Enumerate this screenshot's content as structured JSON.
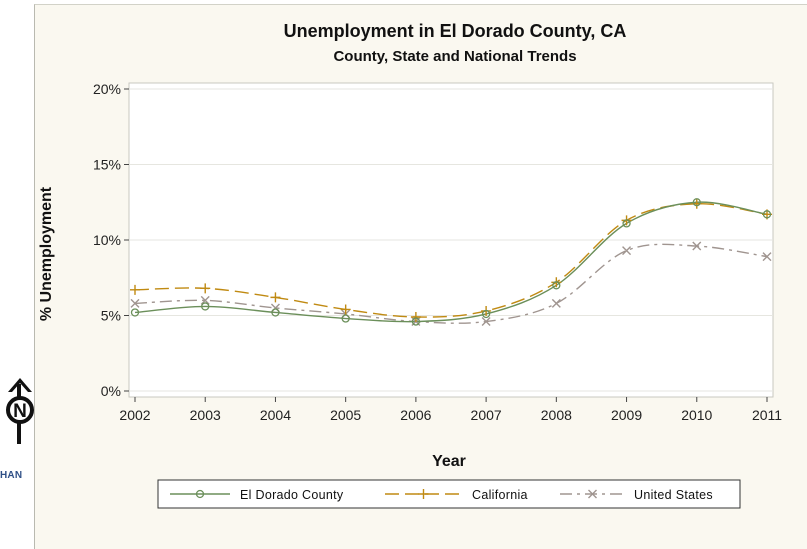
{
  "logo": {
    "letter": "N",
    "text": "HAN"
  },
  "chart_data": {
    "type": "line",
    "title": "Unemployment in El Dorado County, CA",
    "subtitle": "County, State and National Trends",
    "xlabel": "Year",
    "ylabel": "% Unemployment",
    "categories": [
      "2002",
      "2003",
      "2004",
      "2005",
      "2006",
      "2007",
      "2008",
      "2009",
      "2010",
      "2011"
    ],
    "ylim": [
      0,
      20
    ],
    "yticks": [
      0,
      5,
      10,
      15,
      20
    ],
    "ytick_labels": [
      "0%",
      "5%",
      "10%",
      "15%",
      "20%"
    ],
    "grid": true,
    "legend_position": "bottom",
    "series": [
      {
        "name": "El Dorado County",
        "color": "#6b8f5a",
        "dash": "solid",
        "marker": "circle",
        "values": [
          5.2,
          5.6,
          5.2,
          4.8,
          4.6,
          5.1,
          7.0,
          11.1,
          12.5,
          11.7
        ]
      },
      {
        "name": "California",
        "color": "#c08a12",
        "dash": "long-dash",
        "marker": "plus",
        "values": [
          6.7,
          6.8,
          6.2,
          5.4,
          4.9,
          5.3,
          7.2,
          11.3,
          12.4,
          11.7
        ]
      },
      {
        "name": "United States",
        "color": "#a09590",
        "dash": "dash-dot",
        "marker": "x",
        "values": [
          5.8,
          6.0,
          5.5,
          5.1,
          4.6,
          4.6,
          5.8,
          9.3,
          9.6,
          8.9
        ]
      }
    ]
  }
}
